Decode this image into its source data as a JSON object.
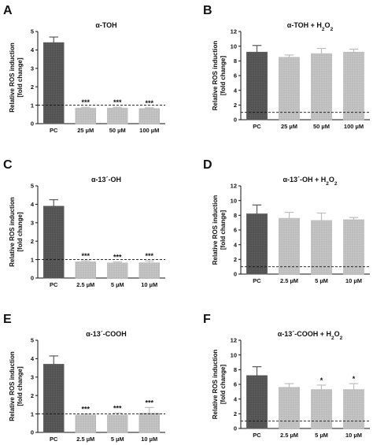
{
  "chart_data": [
    {
      "panel": "A",
      "type": "bar",
      "title": "α-TOH",
      "ylabel": [
        "Relative ROS induction",
        "[fold change]"
      ],
      "categories": [
        "PC",
        "25 µM",
        "50 µM",
        "100 µM"
      ],
      "values": [
        4.4,
        0.85,
        0.85,
        0.82
      ],
      "errors": [
        0.3,
        0.04,
        0.04,
        0.04
      ],
      "annotations": [
        "",
        "***",
        "***",
        "***"
      ],
      "ylim": [
        0,
        5
      ],
      "yticks": [
        "0",
        "1",
        "2",
        "3",
        "4",
        "5"
      ],
      "reference_line": 1,
      "colors": [
        "#5a5a5a",
        "#bdbdbd",
        "#bdbdbd",
        "#bdbdbd"
      ]
    },
    {
      "panel": "B",
      "type": "bar",
      "title": "α-TOH + H₂O₂",
      "ylabel": [
        "Relative ROS induction",
        "[fold change]"
      ],
      "categories": [
        "PC",
        "25 µM",
        "50 µM",
        "100 µM"
      ],
      "values": [
        9.2,
        8.5,
        9.0,
        9.2
      ],
      "errors": [
        0.9,
        0.3,
        0.7,
        0.4
      ],
      "annotations": [
        "",
        "",
        "",
        ""
      ],
      "ylim": [
        0,
        12
      ],
      "yticks": [
        "0",
        "2",
        "4",
        "6",
        "8",
        "10",
        "12"
      ],
      "reference_line": 1,
      "colors": [
        "#5a5a5a",
        "#bdbdbd",
        "#bdbdbd",
        "#bdbdbd"
      ]
    },
    {
      "panel": "C",
      "type": "bar",
      "title": "α-13´-OH",
      "ylabel": [
        "Relative ROS induction",
        "[fold change]"
      ],
      "categories": [
        "PC",
        "2.5 µM",
        "5 µM",
        "10 µM"
      ],
      "values": [
        3.9,
        0.88,
        0.82,
        0.83
      ],
      "errors": [
        0.35,
        0.06,
        0.05,
        0.1
      ],
      "annotations": [
        "",
        "***",
        "***",
        "***"
      ],
      "ylim": [
        0,
        5
      ],
      "yticks": [
        "0",
        "1",
        "2",
        "3",
        "4",
        "5"
      ],
      "reference_line": 1,
      "colors": [
        "#5a5a5a",
        "#bdbdbd",
        "#bdbdbd",
        "#bdbdbd"
      ]
    },
    {
      "panel": "D",
      "type": "bar",
      "title": "α-13´-OH + H₂O₂",
      "ylabel": [
        "Relative ROS induction",
        "[fold change]"
      ],
      "categories": [
        "PC",
        "2.5 µM",
        "5 µM",
        "10 µM"
      ],
      "values": [
        8.2,
        7.6,
        7.3,
        7.4
      ],
      "errors": [
        1.2,
        0.8,
        1.0,
        0.3
      ],
      "annotations": [
        "",
        "",
        "",
        ""
      ],
      "ylim": [
        0,
        12
      ],
      "yticks": [
        "0",
        "2",
        "4",
        "6",
        "8",
        "10",
        "12"
      ],
      "reference_line": 1,
      "colors": [
        "#5a5a5a",
        "#bdbdbd",
        "#bdbdbd",
        "#bdbdbd"
      ]
    },
    {
      "panel": "E",
      "type": "bar",
      "title": "α-13´-COOH",
      "ylabel": [
        "Relative ROS induction",
        "[fold change]"
      ],
      "categories": [
        "PC",
        "2.5 µM",
        "5 µM",
        "10 µM"
      ],
      "values": [
        3.7,
        0.95,
        0.95,
        1.05
      ],
      "errors": [
        0.45,
        0.05,
        0.1,
        0.3
      ],
      "annotations": [
        "",
        "***",
        "***",
        "***"
      ],
      "ylim": [
        0,
        5
      ],
      "yticks": [
        "0",
        "1",
        "2",
        "3",
        "4",
        "5"
      ],
      "reference_line": 1,
      "colors": [
        "#5a5a5a",
        "#bdbdbd",
        "#bdbdbd",
        "#bdbdbd"
      ]
    },
    {
      "panel": "F",
      "type": "bar",
      "title": "α-13´-COOH + H₂O₂",
      "ylabel": [
        "Relative ROS induction",
        "[fold change]"
      ],
      "categories": [
        "PC",
        "2.5 µM",
        "5 µM",
        "10 µM"
      ],
      "values": [
        7.2,
        5.6,
        5.3,
        5.3
      ],
      "errors": [
        1.2,
        0.5,
        0.6,
        0.8
      ],
      "annotations": [
        "",
        "",
        "*",
        "*"
      ],
      "ylim": [
        0,
        12
      ],
      "yticks": [
        "0",
        "2",
        "4",
        "6",
        "8",
        "10",
        "12"
      ],
      "reference_line": 1,
      "colors": [
        "#5a5a5a",
        "#bdbdbd",
        "#bdbdbd",
        "#bdbdbd"
      ]
    }
  ]
}
